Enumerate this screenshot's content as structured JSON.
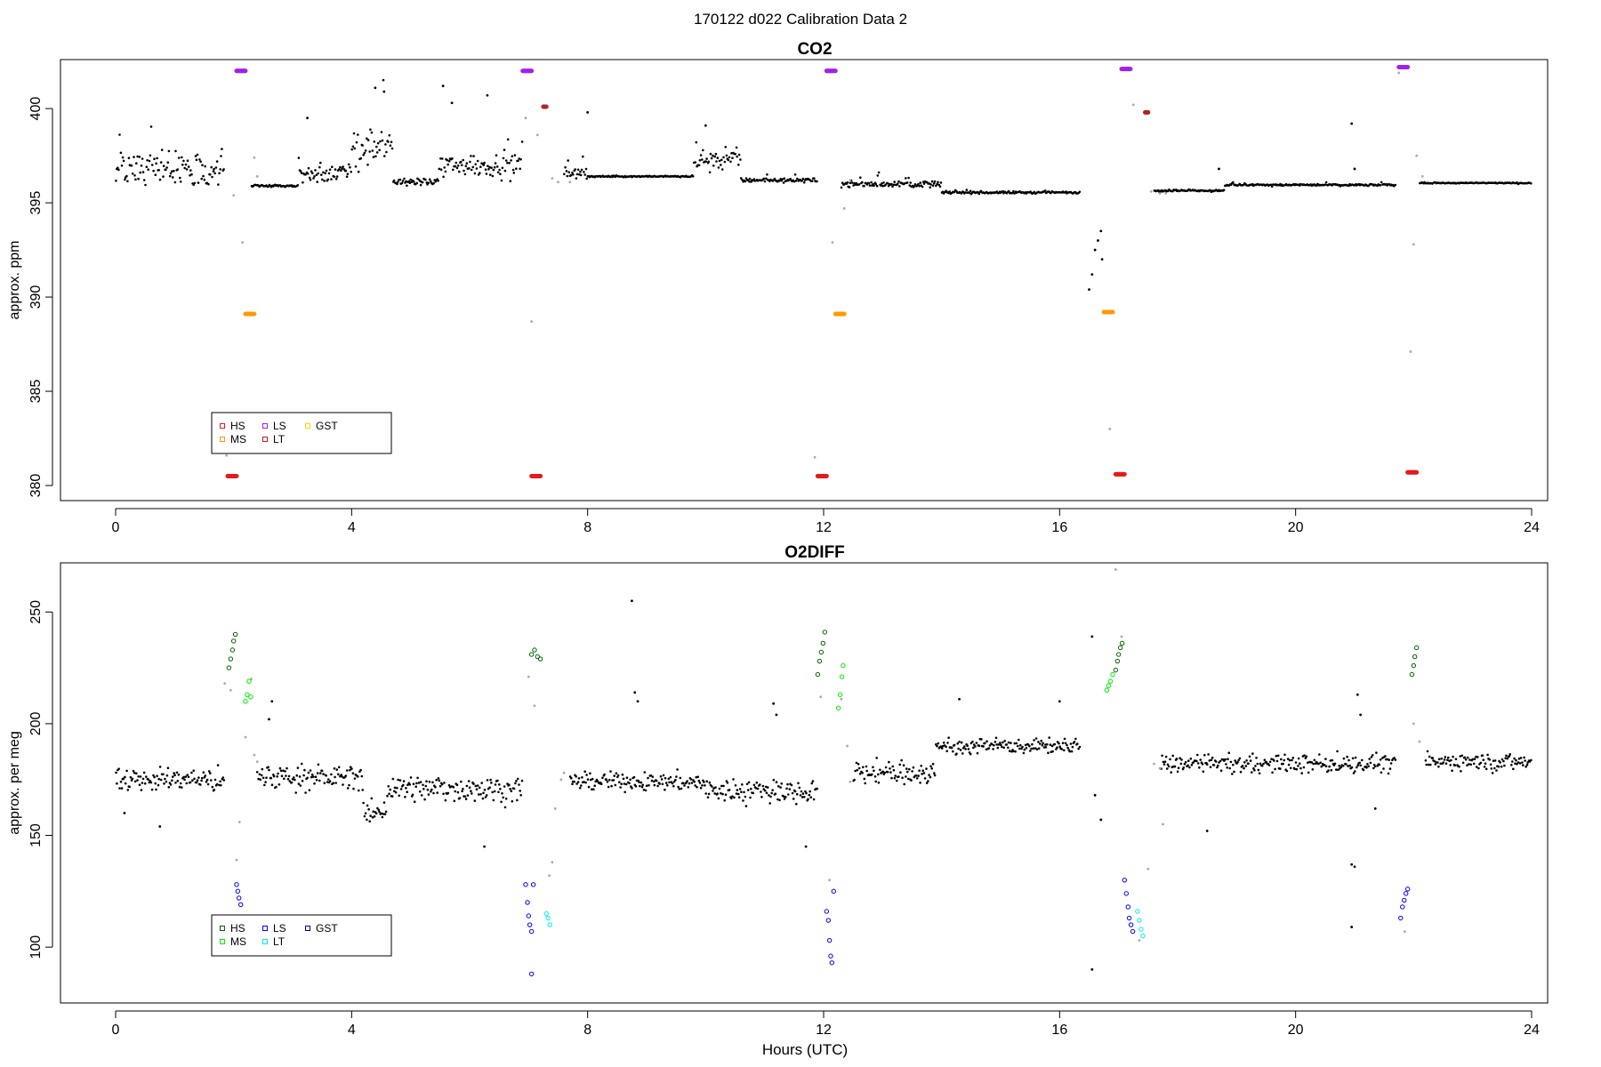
{
  "figure": {
    "title": "170122   d022   Calibration Data 2"
  },
  "chart_data": [
    {
      "type": "scatter",
      "title": "CO2",
      "xlabel": "",
      "ylabel": "approx. ppm",
      "xlim": [
        0,
        24
      ],
      "ylim": [
        379.2,
        402.6
      ],
      "xticks": [
        0,
        4,
        8,
        12,
        16,
        20,
        24
      ],
      "yticks": [
        380,
        385,
        390,
        395,
        400
      ],
      "grid": false,
      "legend": {
        "placement": "bottom-left",
        "entries": [
          {
            "label": "HS",
            "color": "#e41a1c"
          },
          {
            "label": "MS",
            "color": "#ff9900"
          },
          {
            "label": "LS",
            "color": "#a020f0"
          },
          {
            "label": "LT",
            "color": "#b22222"
          },
          {
            "label": "GST",
            "color": "#ffd700"
          }
        ]
      },
      "colors": {
        "ambient": "#000000",
        "flagged": "#aaaaaa",
        "HS": "#e41a1c",
        "MS": "#ff9900",
        "LS": "#a020f0",
        "LT": "#b22222"
      },
      "ambient_segments": [
        [
          0.0,
          1.85,
          396.8,
          1.3,
          1.6
        ],
        [
          2.3,
          3.1,
          395.9,
          0.1,
          0.2
        ],
        [
          3.1,
          4.0,
          396.6,
          0.8,
          1.2
        ],
        [
          4.0,
          4.7,
          398.0,
          1.6,
          2.0
        ],
        [
          4.7,
          5.5,
          396.1,
          0.3,
          0.5
        ],
        [
          5.5,
          6.9,
          397.0,
          1.0,
          1.5
        ],
        [
          7.6,
          8.0,
          396.6,
          0.5,
          1.0
        ],
        [
          8.0,
          9.8,
          396.4,
          0.05,
          0.05
        ],
        [
          9.8,
          10.6,
          397.3,
          0.9,
          1.2
        ],
        [
          10.6,
          11.9,
          396.2,
          0.15,
          0.2
        ],
        [
          12.3,
          14.0,
          396.0,
          0.25,
          0.4
        ],
        [
          14.0,
          16.35,
          395.55,
          0.1,
          0.1
        ],
        [
          17.6,
          18.8,
          395.65,
          0.08,
          0.05
        ],
        [
          18.8,
          21.7,
          395.95,
          0.08,
          0.1
        ],
        [
          22.1,
          24.0,
          396.05,
          0.04,
          0.05
        ]
      ],
      "ambient_points": [
        {
          "x": 5.55,
          "y": 401.2
        },
        {
          "x": 5.7,
          "y": 400.3
        },
        {
          "x": 6.3,
          "y": 400.7
        },
        {
          "x": 8.0,
          "y": 399.8
        },
        {
          "x": 10.0,
          "y": 399.1
        },
        {
          "x": 3.25,
          "y": 399.5
        },
        {
          "x": 4.4,
          "y": 401.1
        },
        {
          "x": 4.55,
          "y": 400.9
        },
        {
          "x": 18.7,
          "y": 396.8
        },
        {
          "x": 20.95,
          "y": 399.2
        },
        {
          "x": 21.0,
          "y": 396.8
        },
        {
          "x": 16.5,
          "y": 390.4
        },
        {
          "x": 16.55,
          "y": 391.2
        },
        {
          "x": 16.6,
          "y": 392.5
        },
        {
          "x": 16.65,
          "y": 393.0
        },
        {
          "x": 16.7,
          "y": 393.5
        },
        {
          "x": 16.72,
          "y": 392.0
        }
      ],
      "flagged_points": [
        {
          "x": 1.88,
          "y": 381.6
        },
        {
          "x": 2.0,
          "y": 395.4
        },
        {
          "x": 2.15,
          "y": 392.9
        },
        {
          "x": 2.35,
          "y": 397.4
        },
        {
          "x": 2.4,
          "y": 396.4
        },
        {
          "x": 6.95,
          "y": 399.5
        },
        {
          "x": 7.05,
          "y": 388.7
        },
        {
          "x": 7.15,
          "y": 398.6
        },
        {
          "x": 7.4,
          "y": 396.3
        },
        {
          "x": 7.5,
          "y": 396.1
        },
        {
          "x": 7.7,
          "y": 396.1
        },
        {
          "x": 11.85,
          "y": 381.5
        },
        {
          "x": 12.15,
          "y": 392.9
        },
        {
          "x": 12.35,
          "y": 394.7
        },
        {
          "x": 12.45,
          "y": 396.2
        },
        {
          "x": 16.85,
          "y": 383.0
        },
        {
          "x": 17.25,
          "y": 400.2
        },
        {
          "x": 17.55,
          "y": 395.6
        },
        {
          "x": 17.7,
          "y": 395.5
        },
        {
          "x": 17.8,
          "y": 395.5
        },
        {
          "x": 21.95,
          "y": 387.1
        },
        {
          "x": 22.0,
          "y": 392.8
        },
        {
          "x": 22.05,
          "y": 397.5
        },
        {
          "x": 22.15,
          "y": 396.4
        },
        {
          "x": 21.75,
          "y": 401.9
        }
      ],
      "calibration_clusters": [
        {
          "name": "LS",
          "x0": 2.05,
          "x1": 2.2,
          "y": 402.0
        },
        {
          "name": "MS",
          "x0": 2.2,
          "x1": 2.35,
          "y": 389.1
        },
        {
          "name": "HS",
          "x0": 1.9,
          "x1": 2.05,
          "y": 380.5
        },
        {
          "name": "LS",
          "x0": 6.9,
          "x1": 7.05,
          "y": 402.0
        },
        {
          "name": "LT",
          "x0": 7.25,
          "x1": 7.3,
          "y": 400.1
        },
        {
          "name": "HS",
          "x0": 7.05,
          "x1": 7.2,
          "y": 380.5
        },
        {
          "name": "LS",
          "x0": 12.05,
          "x1": 12.2,
          "y": 402.0
        },
        {
          "name": "MS",
          "x0": 12.2,
          "x1": 12.35,
          "y": 389.1
        },
        {
          "name": "HS",
          "x0": 11.9,
          "x1": 12.05,
          "y": 380.5
        },
        {
          "name": "LS",
          "x0": 17.05,
          "x1": 17.2,
          "y": 402.1
        },
        {
          "name": "MS",
          "x0": 16.75,
          "x1": 16.9,
          "y": 389.2
        },
        {
          "name": "LT",
          "x0": 17.45,
          "x1": 17.5,
          "y": 399.8
        },
        {
          "name": "HS",
          "x0": 16.95,
          "x1": 17.1,
          "y": 380.6
        },
        {
          "name": "LS",
          "x0": 21.75,
          "x1": 21.9,
          "y": 402.2
        },
        {
          "name": "HS",
          "x0": 21.9,
          "x1": 22.05,
          "y": 380.7
        }
      ]
    },
    {
      "type": "scatter",
      "title": "O2DIFF",
      "xlabel": "Hours (UTC)",
      "ylabel": "approx. per meg",
      "xlim": [
        0,
        24
      ],
      "ylim": [
        75,
        272
      ],
      "xticks": [
        0,
        4,
        8,
        12,
        16,
        20,
        24
      ],
      "yticks": [
        100,
        150,
        200,
        250
      ],
      "grid": false,
      "legend": {
        "placement": "bottom-left",
        "entries": [
          {
            "label": "HS",
            "color": "#006400"
          },
          {
            "label": "MS",
            "color": "#00ee00"
          },
          {
            "label": "LS",
            "color": "#0000ff"
          },
          {
            "label": "LT",
            "color": "#00eeee"
          },
          {
            "label": "GST",
            "color": "#00008b"
          }
        ]
      },
      "colors": {
        "ambient": "#000000",
        "flagged": "#aaaaaa",
        "HS": "#006400",
        "MS": "#00ee00",
        "LS": "#0000ff",
        "LT": "#00eeee"
      },
      "ambient_segments": [
        [
          0.0,
          1.85,
          175,
          8,
          1.6
        ],
        [
          2.4,
          4.2,
          176,
          8,
          1.2
        ],
        [
          4.2,
          4.6,
          160,
          8,
          0.8
        ],
        [
          4.6,
          6.9,
          171,
          9,
          2.0
        ],
        [
          7.7,
          10.0,
          174,
          6,
          1.4
        ],
        [
          10.0,
          11.9,
          170,
          8,
          1.2
        ],
        [
          12.5,
          13.9,
          178,
          8,
          1.0
        ],
        [
          13.9,
          16.35,
          190,
          5,
          1.5
        ],
        [
          17.7,
          21.7,
          182,
          6,
          2.2
        ],
        [
          22.2,
          24.0,
          183,
          6,
          1.1
        ]
      ],
      "ambient_points": [
        {
          "x": 0.15,
          "y": 160
        },
        {
          "x": 0.75,
          "y": 154
        },
        {
          "x": 2.65,
          "y": 210
        },
        {
          "x": 2.6,
          "y": 202
        },
        {
          "x": 6.25,
          "y": 145
        },
        {
          "x": 8.75,
          "y": 255
        },
        {
          "x": 8.8,
          "y": 214
        },
        {
          "x": 8.85,
          "y": 210
        },
        {
          "x": 11.15,
          "y": 209
        },
        {
          "x": 11.2,
          "y": 204
        },
        {
          "x": 11.7,
          "y": 145
        },
        {
          "x": 14.3,
          "y": 211
        },
        {
          "x": 16.0,
          "y": 210
        },
        {
          "x": 16.55,
          "y": 239
        },
        {
          "x": 16.6,
          "y": 168
        },
        {
          "x": 16.7,
          "y": 157
        },
        {
          "x": 16.55,
          "y": 90
        },
        {
          "x": 18.5,
          "y": 152
        },
        {
          "x": 20.95,
          "y": 137
        },
        {
          "x": 21.0,
          "y": 136
        },
        {
          "x": 20.95,
          "y": 109
        },
        {
          "x": 21.05,
          "y": 213
        },
        {
          "x": 21.1,
          "y": 204
        },
        {
          "x": 21.35,
          "y": 162
        }
      ],
      "flagged_points": [
        {
          "x": 1.85,
          "y": 218
        },
        {
          "x": 1.95,
          "y": 215
        },
        {
          "x": 2.05,
          "y": 139
        },
        {
          "x": 2.1,
          "y": 156
        },
        {
          "x": 2.2,
          "y": 194
        },
        {
          "x": 2.3,
          "y": 220
        },
        {
          "x": 2.35,
          "y": 186
        },
        {
          "x": 2.4,
          "y": 183
        },
        {
          "x": 7.0,
          "y": 221
        },
        {
          "x": 7.1,
          "y": 208
        },
        {
          "x": 7.35,
          "y": 132
        },
        {
          "x": 7.4,
          "y": 138
        },
        {
          "x": 7.45,
          "y": 162
        },
        {
          "x": 7.55,
          "y": 175
        },
        {
          "x": 7.6,
          "y": 178
        },
        {
          "x": 11.95,
          "y": 212
        },
        {
          "x": 12.1,
          "y": 130
        },
        {
          "x": 12.3,
          "y": 211
        },
        {
          "x": 12.4,
          "y": 190
        },
        {
          "x": 12.45,
          "y": 174
        },
        {
          "x": 16.95,
          "y": 269
        },
        {
          "x": 17.05,
          "y": 239
        },
        {
          "x": 17.35,
          "y": 103
        },
        {
          "x": 17.5,
          "y": 135
        },
        {
          "x": 17.6,
          "y": 182
        },
        {
          "x": 17.7,
          "y": 180
        },
        {
          "x": 17.75,
          "y": 155
        },
        {
          "x": 21.85,
          "y": 107
        },
        {
          "x": 22.0,
          "y": 200
        },
        {
          "x": 22.1,
          "y": 192
        }
      ],
      "calibration_points": [
        {
          "name": "HS",
          "x": 1.92,
          "y": 225
        },
        {
          "name": "HS",
          "x": 1.95,
          "y": 229
        },
        {
          "name": "HS",
          "x": 1.98,
          "y": 233
        },
        {
          "name": "HS",
          "x": 2.0,
          "y": 237
        },
        {
          "name": "HS",
          "x": 2.03,
          "y": 240
        },
        {
          "name": "MS",
          "x": 2.2,
          "y": 210
        },
        {
          "name": "MS",
          "x": 2.23,
          "y": 213
        },
        {
          "name": "MS",
          "x": 2.26,
          "y": 219
        },
        {
          "name": "MS",
          "x": 2.29,
          "y": 212
        },
        {
          "name": "LS",
          "x": 2.05,
          "y": 128
        },
        {
          "name": "LS",
          "x": 2.07,
          "y": 125
        },
        {
          "name": "LS",
          "x": 2.09,
          "y": 122
        },
        {
          "name": "LS",
          "x": 2.12,
          "y": 119
        },
        {
          "name": "HS",
          "x": 7.05,
          "y": 231
        },
        {
          "name": "HS",
          "x": 7.1,
          "y": 233
        },
        {
          "name": "HS",
          "x": 7.15,
          "y": 230
        },
        {
          "name": "HS",
          "x": 7.2,
          "y": 229
        },
        {
          "name": "LS",
          "x": 6.95,
          "y": 128
        },
        {
          "name": "LS",
          "x": 6.98,
          "y": 120
        },
        {
          "name": "LS",
          "x": 7.0,
          "y": 114
        },
        {
          "name": "LS",
          "x": 7.02,
          "y": 110
        },
        {
          "name": "LS",
          "x": 7.05,
          "y": 107
        },
        {
          "name": "LS",
          "x": 7.05,
          "y": 88
        },
        {
          "name": "LS",
          "x": 7.08,
          "y": 128
        },
        {
          "name": "LT",
          "x": 7.3,
          "y": 115
        },
        {
          "name": "LT",
          "x": 7.33,
          "y": 113
        },
        {
          "name": "LT",
          "x": 7.36,
          "y": 110
        },
        {
          "name": "HS",
          "x": 11.9,
          "y": 222
        },
        {
          "name": "HS",
          "x": 11.93,
          "y": 228
        },
        {
          "name": "HS",
          "x": 11.96,
          "y": 232
        },
        {
          "name": "HS",
          "x": 11.99,
          "y": 236
        },
        {
          "name": "HS",
          "x": 12.02,
          "y": 241
        },
        {
          "name": "MS",
          "x": 12.25,
          "y": 207
        },
        {
          "name": "MS",
          "x": 12.28,
          "y": 213
        },
        {
          "name": "MS",
          "x": 12.31,
          "y": 221
        },
        {
          "name": "MS",
          "x": 12.33,
          "y": 226
        },
        {
          "name": "LS",
          "x": 12.05,
          "y": 116
        },
        {
          "name": "LS",
          "x": 12.08,
          "y": 112
        },
        {
          "name": "LS",
          "x": 12.1,
          "y": 103
        },
        {
          "name": "LS",
          "x": 12.12,
          "y": 96
        },
        {
          "name": "LS",
          "x": 12.14,
          "y": 93
        },
        {
          "name": "LS",
          "x": 12.17,
          "y": 125
        },
        {
          "name": "MS",
          "x": 16.8,
          "y": 215
        },
        {
          "name": "MS",
          "x": 16.83,
          "y": 217
        },
        {
          "name": "MS",
          "x": 16.86,
          "y": 219
        },
        {
          "name": "MS",
          "x": 16.9,
          "y": 222
        },
        {
          "name": "HS",
          "x": 16.95,
          "y": 224
        },
        {
          "name": "HS",
          "x": 16.98,
          "y": 228
        },
        {
          "name": "HS",
          "x": 17.0,
          "y": 231
        },
        {
          "name": "HS",
          "x": 17.03,
          "y": 234
        },
        {
          "name": "HS",
          "x": 17.06,
          "y": 236
        },
        {
          "name": "LS",
          "x": 17.1,
          "y": 130
        },
        {
          "name": "LS",
          "x": 17.13,
          "y": 124
        },
        {
          "name": "LS",
          "x": 17.16,
          "y": 118
        },
        {
          "name": "LS",
          "x": 17.18,
          "y": 113
        },
        {
          "name": "LS",
          "x": 17.21,
          "y": 110
        },
        {
          "name": "LS",
          "x": 17.24,
          "y": 107
        },
        {
          "name": "LT",
          "x": 17.32,
          "y": 116
        },
        {
          "name": "LT",
          "x": 17.35,
          "y": 112
        },
        {
          "name": "LT",
          "x": 17.38,
          "y": 108
        },
        {
          "name": "LT",
          "x": 17.41,
          "y": 105
        },
        {
          "name": "LS",
          "x": 21.78,
          "y": 113
        },
        {
          "name": "LS",
          "x": 21.81,
          "y": 118
        },
        {
          "name": "LS",
          "x": 21.84,
          "y": 121
        },
        {
          "name": "LS",
          "x": 21.87,
          "y": 124
        },
        {
          "name": "LS",
          "x": 21.9,
          "y": 126
        },
        {
          "name": "HS",
          "x": 21.97,
          "y": 222
        },
        {
          "name": "HS",
          "x": 22.0,
          "y": 226
        },
        {
          "name": "HS",
          "x": 22.02,
          "y": 230
        },
        {
          "name": "HS",
          "x": 22.05,
          "y": 234
        }
      ]
    }
  ]
}
